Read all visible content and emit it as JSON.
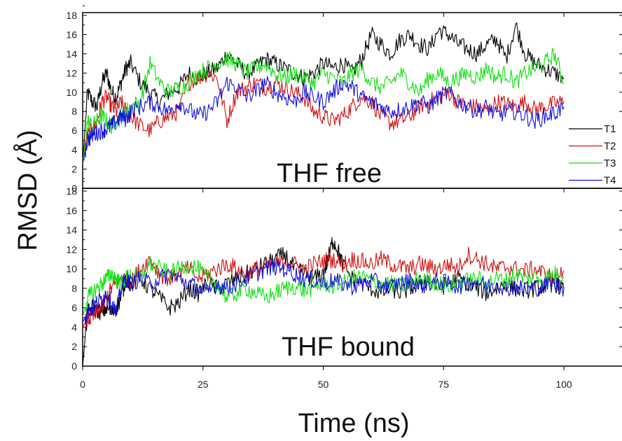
{
  "chart_data": [
    {
      "type": "line",
      "panel_label": "THF free",
      "ylabel": "RMSD (Å)",
      "xlabel": "Time (ns)",
      "xlim": [
        0,
        100
      ],
      "ylim": [
        0,
        18
      ],
      "x_ticks": [
        "0",
        "25",
        "50",
        "75",
        "100"
      ],
      "y_ticks": [
        "0",
        "2",
        "4",
        "6",
        "8",
        "10",
        "12",
        "14",
        "16",
        "18"
      ],
      "legend": {
        "position": "right",
        "entries": [
          "T1",
          "T2",
          "T3",
          "T4"
        ]
      },
      "series": [
        {
          "name": "T1",
          "color": "#000000",
          "x": [
            0,
            1,
            2,
            3,
            4,
            5,
            6,
            7,
            8,
            9,
            10,
            12,
            14,
            16,
            18,
            20,
            22,
            24,
            26,
            28,
            30,
            32,
            34,
            36,
            38,
            40,
            42,
            44,
            46,
            48,
            50,
            52,
            54,
            56,
            58,
            60,
            62,
            64,
            66,
            68,
            70,
            72,
            74,
            76,
            78,
            80,
            82,
            84,
            86,
            88,
            90,
            92,
            94,
            96,
            98,
            100
          ],
          "y": [
            2.5,
            10,
            9,
            8.5,
            11,
            12,
            10,
            9.5,
            11,
            12.5,
            13,
            11,
            10,
            9,
            10,
            10.5,
            12,
            11.5,
            12,
            12.5,
            14,
            13,
            12,
            12.5,
            13.5,
            13,
            12.5,
            12,
            11.5,
            12,
            13,
            12.5,
            13,
            12,
            13.5,
            16,
            15,
            14,
            15.5,
            16,
            15,
            14.5,
            16.5,
            16,
            15,
            14.5,
            14,
            15,
            15.5,
            13.5,
            17,
            14,
            13,
            12.5,
            12,
            11.5
          ]
        },
        {
          "name": "T2",
          "color": "#d01010",
          "x": [
            0,
            1,
            2,
            3,
            4,
            5,
            6,
            7,
            8,
            9,
            10,
            12,
            14,
            16,
            18,
            20,
            22,
            24,
            26,
            28,
            30,
            32,
            34,
            36,
            38,
            40,
            42,
            44,
            46,
            48,
            50,
            52,
            54,
            56,
            58,
            60,
            62,
            64,
            66,
            68,
            70,
            72,
            74,
            76,
            78,
            80,
            82,
            84,
            86,
            88,
            90,
            92,
            94,
            96,
            98,
            100
          ],
          "y": [
            2.5,
            5.5,
            6,
            7,
            9,
            9.5,
            8.5,
            8,
            9,
            8,
            7.5,
            6.5,
            6,
            7,
            7.5,
            8,
            11,
            11.5,
            12,
            11.5,
            7,
            10,
            10.5,
            11,
            10.5,
            11,
            10.5,
            10,
            9.5,
            8,
            7.5,
            7,
            7.5,
            8.5,
            9.5,
            9,
            7.5,
            6.8,
            7,
            7.5,
            8.5,
            9,
            9.5,
            10,
            9,
            8.5,
            8.5,
            8,
            9,
            8.8,
            8.5,
            9,
            8.2,
            8.5,
            8.8,
            9
          ]
        },
        {
          "name": "T3",
          "color": "#10e010",
          "x": [
            0,
            1,
            2,
            3,
            4,
            5,
            6,
            7,
            8,
            9,
            10,
            12,
            14,
            16,
            18,
            20,
            22,
            24,
            26,
            28,
            30,
            32,
            34,
            36,
            38,
            40,
            42,
            44,
            46,
            48,
            50,
            52,
            54,
            56,
            58,
            60,
            62,
            64,
            66,
            68,
            70,
            72,
            74,
            76,
            78,
            80,
            82,
            84,
            86,
            88,
            90,
            92,
            94,
            96,
            98,
            100
          ],
          "y": [
            2.5,
            7,
            6.5,
            7,
            7.5,
            7,
            6.5,
            7,
            7.5,
            8,
            8.5,
            9,
            13,
            11,
            10,
            10.5,
            11,
            12,
            12.5,
            13,
            13.5,
            13,
            12,
            12.5,
            13,
            12,
            11.5,
            12,
            11.5,
            11,
            12,
            11.5,
            11,
            12,
            12.5,
            11,
            10.5,
            11,
            12,
            11,
            10,
            11.5,
            12,
            11,
            11.5,
            12,
            11.5,
            12.5,
            11.5,
            12,
            11,
            12,
            12.5,
            13,
            14,
            11
          ]
        },
        {
          "name": "T4",
          "color": "#1010e0",
          "x": [
            0,
            1,
            2,
            3,
            4,
            5,
            6,
            7,
            8,
            9,
            10,
            12,
            14,
            16,
            18,
            20,
            22,
            24,
            26,
            28,
            30,
            32,
            34,
            36,
            38,
            40,
            42,
            44,
            46,
            48,
            50,
            52,
            54,
            56,
            58,
            60,
            62,
            64,
            66,
            68,
            70,
            72,
            74,
            76,
            78,
            80,
            82,
            84,
            86,
            88,
            90,
            92,
            94,
            96,
            98,
            100
          ],
          "y": [
            2.5,
            5,
            5.5,
            5.8,
            6,
            6.2,
            6.5,
            7,
            7.5,
            7.2,
            8,
            8.5,
            9,
            8.5,
            8,
            9,
            8.2,
            7.5,
            8,
            9,
            11,
            10.5,
            9.5,
            10,
            11,
            10,
            9.5,
            9,
            10,
            9.5,
            9,
            10,
            11,
            10.5,
            9.5,
            9,
            8.5,
            8,
            8.2,
            8.5,
            9,
            8.5,
            9.5,
            10,
            9,
            8.5,
            8,
            8.5,
            7.5,
            8,
            8,
            7.5,
            7,
            7.5,
            7.8,
            8.5
          ]
        }
      ]
    },
    {
      "type": "line",
      "panel_label": "THF bound",
      "xlabel": "Time (ns)",
      "xlim": [
        0,
        100
      ],
      "ylim": [
        0,
        18
      ],
      "x_ticks": [
        "0",
        "25",
        "50",
        "75",
        "100"
      ],
      "y_ticks": [
        "0",
        "2",
        "4",
        "6",
        "8",
        "10",
        "12",
        "14",
        "16",
        "18"
      ],
      "series": [
        {
          "name": "T1",
          "color": "#000000",
          "x": [
            0,
            1,
            2,
            3,
            4,
            5,
            6,
            7,
            8,
            9,
            10,
            12,
            14,
            16,
            18,
            20,
            22,
            24,
            26,
            28,
            30,
            32,
            34,
            36,
            38,
            40,
            42,
            44,
            46,
            48,
            50,
            51,
            52,
            53,
            54,
            56,
            58,
            60,
            62,
            64,
            66,
            68,
            70,
            72,
            74,
            76,
            78,
            80,
            82,
            84,
            86,
            88,
            90,
            92,
            94,
            96,
            98,
            100
          ],
          "y": [
            0,
            5.5,
            6,
            5.8,
            5.5,
            6,
            5.5,
            6,
            7,
            9,
            8.5,
            9,
            8,
            7,
            6,
            6.5,
            8,
            7.5,
            8.5,
            8,
            8.5,
            9,
            9.5,
            10,
            10.5,
            11,
            11.5,
            10,
            9.5,
            9,
            9.5,
            11,
            13,
            12,
            10.5,
            9,
            8.5,
            8,
            7.5,
            8,
            7.5,
            8,
            8.5,
            9,
            8,
            8.5,
            9,
            8.5,
            8,
            7.5,
            8,
            8.5,
            8,
            7.8,
            8,
            8.2,
            8.5,
            8
          ]
        },
        {
          "name": "T2",
          "color": "#d01010",
          "x": [
            0,
            1,
            2,
            3,
            4,
            5,
            6,
            7,
            8,
            9,
            10,
            12,
            14,
            16,
            18,
            20,
            22,
            24,
            26,
            28,
            30,
            32,
            34,
            36,
            38,
            40,
            42,
            44,
            46,
            48,
            50,
            52,
            54,
            56,
            58,
            60,
            62,
            64,
            66,
            68,
            70,
            72,
            74,
            76,
            78,
            80,
            82,
            84,
            86,
            88,
            90,
            92,
            94,
            96,
            98,
            100
          ],
          "y": [
            4,
            4.8,
            5,
            5.5,
            6,
            7,
            8,
            8.5,
            9,
            9,
            8.5,
            10,
            11,
            9.5,
            9,
            9.5,
            10,
            9,
            9.5,
            10,
            10.5,
            10,
            9.5,
            10,
            10.2,
            10.5,
            10.8,
            10.5,
            10,
            10.5,
            10.8,
            11,
            10.5,
            11,
            10.8,
            10.5,
            11,
            10.5,
            10.2,
            10,
            10.5,
            10.2,
            10,
            10.5,
            10,
            11.5,
            11,
            10.5,
            10,
            10.2,
            10,
            9.8,
            10,
            9.5,
            9,
            9.8
          ]
        },
        {
          "name": "T3",
          "color": "#10e010",
          "x": [
            0,
            1,
            2,
            3,
            4,
            5,
            6,
            7,
            8,
            9,
            10,
            12,
            14,
            16,
            18,
            20,
            22,
            24,
            26,
            28,
            30,
            32,
            34,
            36,
            38,
            40,
            42,
            44,
            46,
            48,
            50,
            52,
            54,
            56,
            58,
            60,
            62,
            64,
            66,
            68,
            70,
            72,
            74,
            76,
            78,
            80,
            82,
            84,
            86,
            88,
            90,
            92,
            94,
            96,
            98,
            100
          ],
          "y": [
            5,
            7,
            7.5,
            8,
            8.5,
            9,
            9.5,
            9,
            8.5,
            9,
            9.5,
            9,
            10.5,
            10,
            9.5,
            10,
            10.5,
            10,
            9,
            8.5,
            7,
            7.5,
            8,
            7.5,
            7,
            7.5,
            8,
            8.2,
            7.8,
            8,
            8.5,
            8.2,
            8.5,
            9,
            9.2,
            8.8,
            8.5,
            8.5,
            8.2,
            8.5,
            9,
            8.8,
            8.5,
            8.2,
            8.5,
            8.8,
            9,
            8.5,
            9,
            8.8,
            9.5,
            9,
            9.2,
            9,
            9.5,
            9.2
          ]
        },
        {
          "name": "T4",
          "color": "#1010e0",
          "x": [
            0,
            1,
            2,
            3,
            4,
            5,
            6,
            7,
            8,
            9,
            10,
            12,
            14,
            16,
            18,
            20,
            22,
            24,
            26,
            28,
            30,
            32,
            34,
            36,
            38,
            40,
            42,
            44,
            46,
            48,
            50,
            52,
            54,
            56,
            58,
            60,
            62,
            64,
            66,
            68,
            70,
            72,
            74,
            76,
            78,
            80,
            82,
            84,
            86,
            88,
            90,
            92,
            94,
            96,
            98,
            100
          ],
          "y": [
            4.5,
            5.5,
            6,
            6.5,
            7,
            7.5,
            6.5,
            5.5,
            8,
            9,
            8.5,
            9,
            8.5,
            9,
            9.5,
            9,
            8.5,
            8,
            7.5,
            8.5,
            8,
            8.5,
            9,
            9.5,
            10,
            10.2,
            10,
            9.5,
            9,
            8.8,
            8.5,
            8.8,
            8.5,
            8.2,
            8.5,
            8.8,
            8.5,
            8.2,
            8.5,
            8.8,
            8.2,
            8.5,
            8.8,
            8.5,
            8.2,
            8.5,
            8.8,
            8.2,
            8.5,
            8,
            8.2,
            7.8,
            8,
            8.2,
            8.5,
            8
          ]
        }
      ]
    }
  ]
}
